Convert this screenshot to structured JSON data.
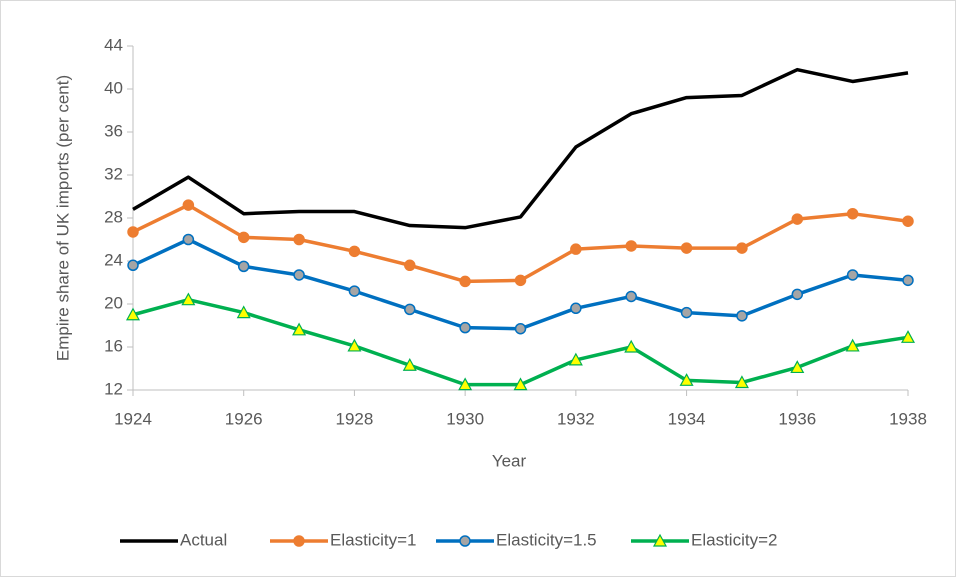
{
  "chart_data": {
    "type": "line",
    "x_label": "Year",
    "y_label": "Empire share of UK imports (per cent)",
    "x": [
      1924,
      1925,
      1926,
      1927,
      1928,
      1929,
      1930,
      1931,
      1932,
      1933,
      1934,
      1935,
      1936,
      1937,
      1938
    ],
    "xlim": [
      1924,
      1938
    ],
    "xticks": [
      1924,
      1926,
      1928,
      1930,
      1932,
      1934,
      1936,
      1938
    ],
    "ylim": [
      12,
      44
    ],
    "yticks": [
      12,
      16,
      20,
      24,
      28,
      32,
      36,
      40,
      44
    ],
    "grid": false,
    "legend": "bottom",
    "series": [
      {
        "name": "Actual",
        "color": "#000000",
        "marker": "none",
        "values": [
          28.8,
          31.8,
          28.4,
          28.6,
          28.6,
          27.3,
          27.1,
          28.1,
          34.6,
          37.7,
          39.2,
          39.4,
          41.8,
          40.7,
          41.5
        ]
      },
      {
        "name": "Elasticity=1",
        "color": "#ed7d31",
        "marker": "circle",
        "marker_fill": "#ed7d31",
        "values": [
          26.7,
          29.2,
          26.2,
          26.0,
          24.9,
          23.6,
          22.1,
          22.2,
          25.1,
          25.4,
          25.2,
          25.2,
          27.9,
          28.4,
          27.7
        ]
      },
      {
        "name": "Elasticity=1.5",
        "color": "#0070c0",
        "marker": "circle",
        "marker_fill": "#a5a5a5",
        "values": [
          23.6,
          26.0,
          23.5,
          22.7,
          21.2,
          19.5,
          17.8,
          17.7,
          19.6,
          20.7,
          19.2,
          18.9,
          20.9,
          22.7,
          22.2
        ]
      },
      {
        "name": "Elasticity=2",
        "color": "#00b050",
        "marker": "triangle",
        "marker_fill": "#ffff00",
        "values": [
          19.0,
          20.4,
          19.2,
          17.6,
          16.1,
          14.3,
          12.5,
          12.5,
          14.8,
          16.0,
          12.9,
          12.7,
          14.1,
          16.1,
          16.9
        ]
      }
    ]
  }
}
